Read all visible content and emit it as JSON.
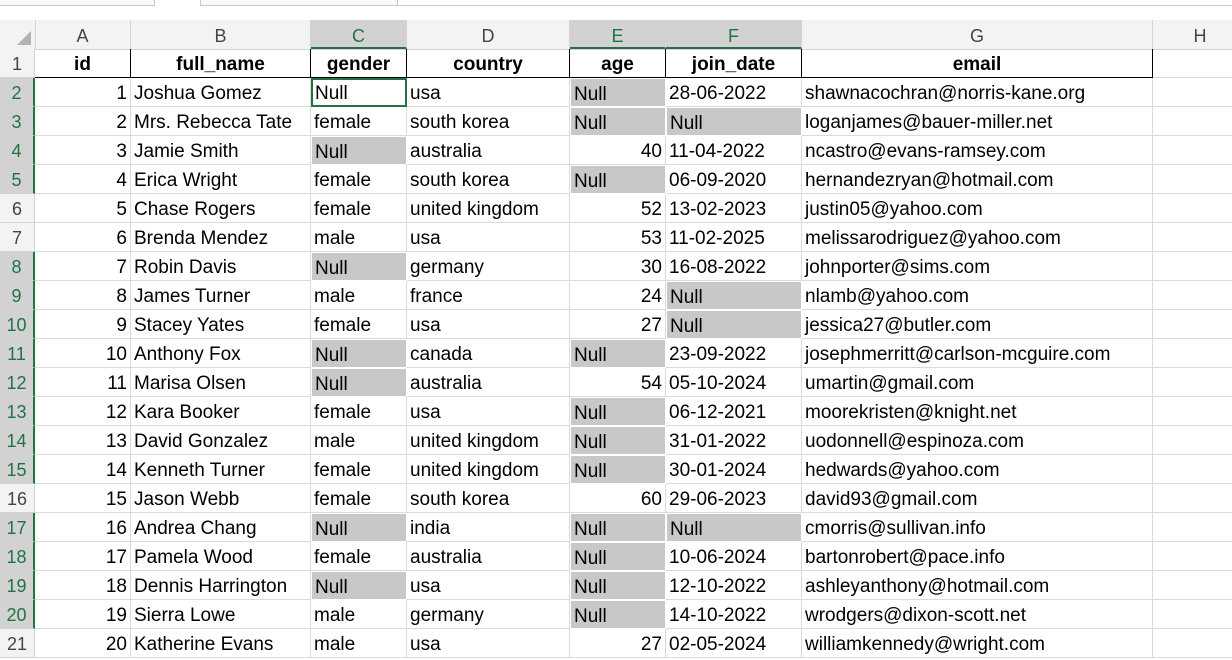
{
  "columns": [
    "A",
    "B",
    "C",
    "D",
    "E",
    "F",
    "G",
    "H"
  ],
  "headers": [
    "id",
    "full_name",
    "gender",
    "country",
    "age",
    "join_date",
    "email"
  ],
  "rows": [
    [
      "1",
      "Joshua Gomez",
      "Null",
      "usa",
      "Null",
      "28-06-2022",
      "shawnacochran@norris-kane.org"
    ],
    [
      "2",
      "Mrs. Rebecca Tate",
      "female",
      "south korea",
      "Null",
      "Null",
      "loganjames@bauer-miller.net"
    ],
    [
      "3",
      "Jamie Smith",
      "Null",
      "australia",
      "40",
      "11-04-2022",
      "ncastro@evans-ramsey.com"
    ],
    [
      "4",
      "Erica Wright",
      "female",
      "south korea",
      "Null",
      "06-09-2020",
      "hernandezryan@hotmail.com"
    ],
    [
      "5",
      "Chase Rogers",
      "female",
      "united kingdom",
      "52",
      "13-02-2023",
      "justin05@yahoo.com"
    ],
    [
      "6",
      "Brenda Mendez",
      "male",
      "usa",
      "53",
      "11-02-2025",
      "melissarodriguez@yahoo.com"
    ],
    [
      "7",
      "Robin Davis",
      "Null",
      "germany",
      "30",
      "16-08-2022",
      "johnporter@sims.com"
    ],
    [
      "8",
      "James Turner",
      "male",
      "france",
      "24",
      "Null",
      "nlamb@yahoo.com"
    ],
    [
      "9",
      "Stacey Yates",
      "female",
      "usa",
      "27",
      "Null",
      "jessica27@butler.com"
    ],
    [
      "10",
      "Anthony Fox",
      "Null",
      "canada",
      "Null",
      "23-09-2022",
      "josephmerritt@carlson-mcguire.com"
    ],
    [
      "11",
      "Marisa Olsen",
      "Null",
      "australia",
      "54",
      "05-10-2024",
      "umartin@gmail.com"
    ],
    [
      "12",
      "Kara Booker",
      "female",
      "usa",
      "Null",
      "06-12-2021",
      "moorekristen@knight.net"
    ],
    [
      "13",
      "David Gonzalez",
      "male",
      "united kingdom",
      "Null",
      "31-01-2022",
      "uodonnell@espinoza.com"
    ],
    [
      "14",
      "Kenneth Turner",
      "female",
      "united kingdom",
      "Null",
      "30-01-2024",
      "hedwards@yahoo.com"
    ],
    [
      "15",
      "Jason Webb",
      "female",
      "south korea",
      "60",
      "29-06-2023",
      "david93@gmail.com"
    ],
    [
      "16",
      "Andrea Chang",
      "Null",
      "india",
      "Null",
      "Null",
      "cmorris@sullivan.info"
    ],
    [
      "17",
      "Pamela Wood",
      "female",
      "australia",
      "Null",
      "10-06-2024",
      "bartonrobert@pace.info"
    ],
    [
      "18",
      "Dennis Harrington",
      "Null",
      "usa",
      "Null",
      "12-10-2022",
      "ashleyanthony@hotmail.com"
    ],
    [
      "19",
      "Sierra Lowe",
      "male",
      "germany",
      "Null",
      "14-10-2022",
      "wrodgers@dixon-scott.net"
    ],
    [
      "20",
      "Katherine Evans",
      "male",
      "usa",
      "27",
      "02-05-2024",
      "williamkennedy@wright.com"
    ]
  ],
  "selected_columns": [
    "C",
    "E",
    "F"
  ],
  "selected_rows": [
    2,
    3,
    4,
    5,
    8,
    9,
    10,
    11,
    12,
    13,
    14,
    15,
    17,
    18,
    19,
    20
  ],
  "active_cell": "C2",
  "accent_color": "#217346",
  "null_fill_color": "#c8c8c8"
}
